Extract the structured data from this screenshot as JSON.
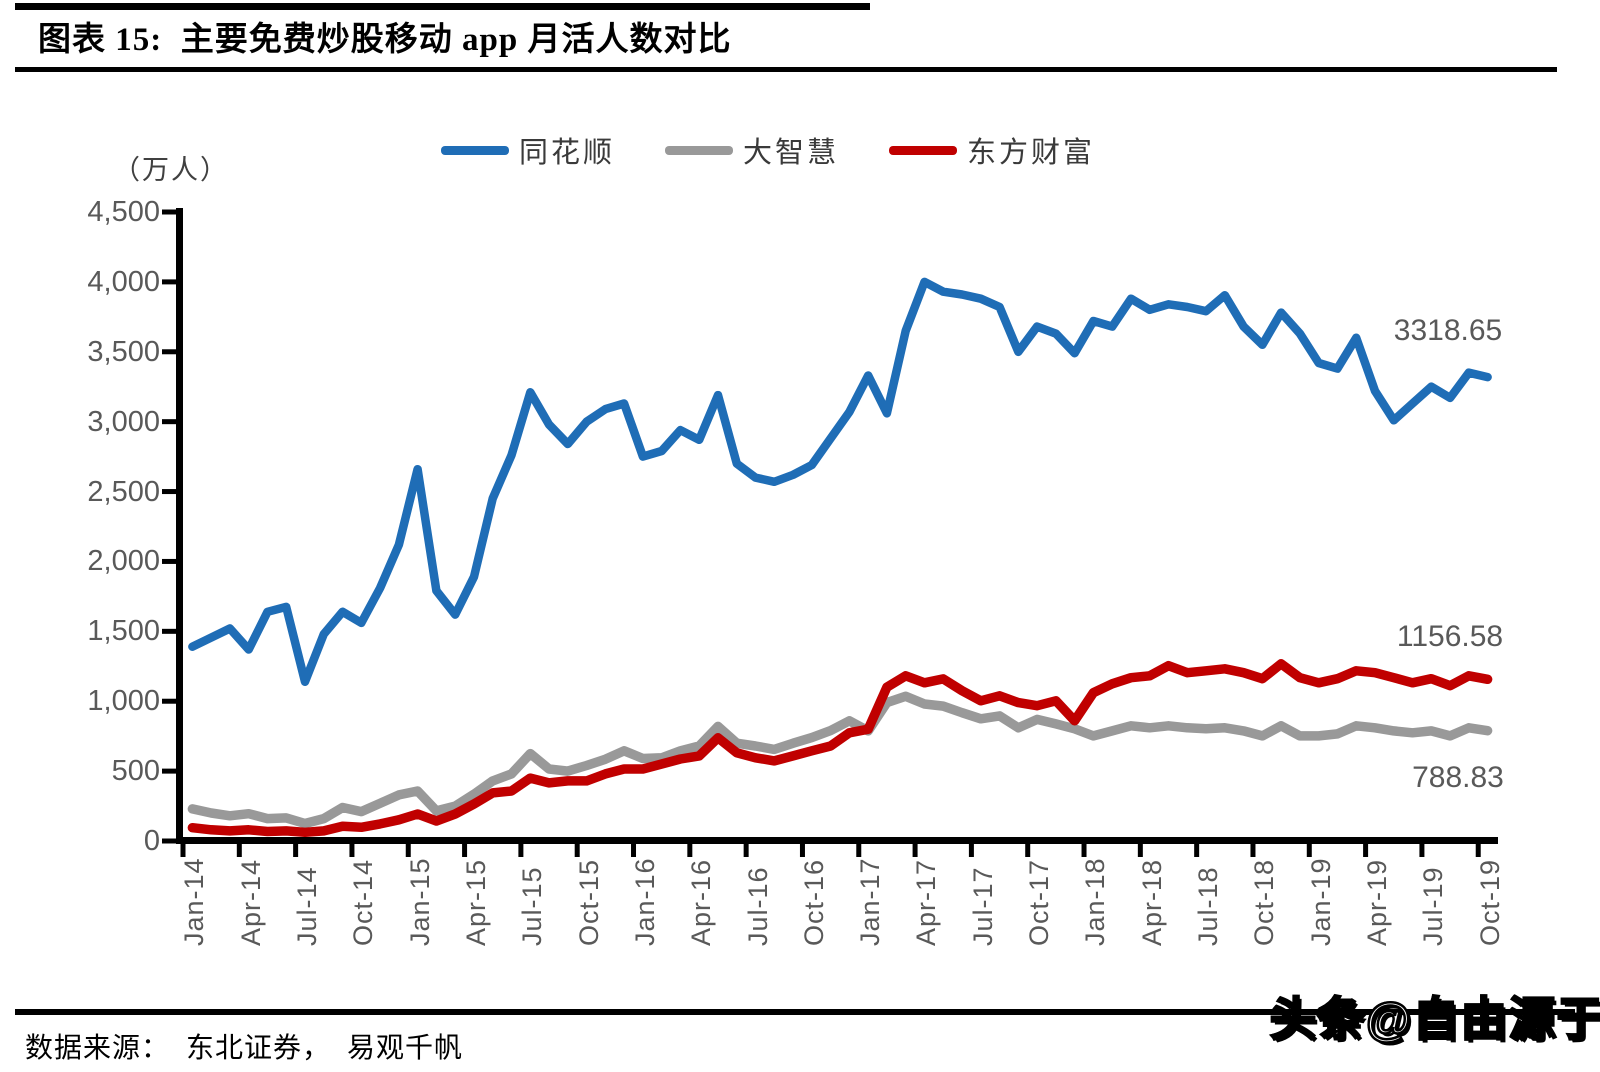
{
  "title": "图表 15:  主要免费炒股移动 app 月活人数对比",
  "y_unit": "（万人）",
  "source": "数据来源：  东北证券，  易观千帆",
  "watermark": "头条@自由源于",
  "colors": {
    "tonghuashun": "#1f6db6",
    "dazhihui": "#999999",
    "dongfangcaifu": "#c00000",
    "axis": "#000000",
    "tick_text": "#595959"
  },
  "legend": [
    {
      "id": "tonghuashun",
      "label": "同花顺",
      "color": "#1f6db6"
    },
    {
      "id": "dazhihui",
      "label": "大智慧",
      "color": "#999999"
    },
    {
      "id": "dongfangcaifu",
      "label": "东方财富",
      "color": "#c00000"
    }
  ],
  "chart_data": {
    "type": "line",
    "title": "主要免费炒股移动 app 月活人数对比",
    "ylabel": "（万人）",
    "ylim": [
      0,
      4500
    ],
    "ytick_step": 500,
    "grid": false,
    "legend_position": "top",
    "x_unit": "month",
    "x_range": [
      "Jan-14",
      "Oct-19"
    ],
    "x_tick_labels": [
      "Jan-14",
      "Apr-14",
      "Jul-14",
      "Oct-14",
      "Jan-15",
      "Apr-15",
      "Jul-15",
      "Oct-15",
      "Jan-16",
      "Apr-16",
      "Jul-16",
      "Oct-16",
      "Jan-17",
      "Apr-17",
      "Jul-17",
      "Oct-17",
      "Jan-18",
      "Apr-18",
      "Jul-18",
      "Oct-18",
      "Jan-19",
      "Apr-19",
      "Jul-19",
      "Oct-19"
    ],
    "y_ticks": [
      {
        "label": "0",
        "value": 0
      },
      {
        "label": "500",
        "value": 500
      },
      {
        "label": "1,000",
        "value": 1000
      },
      {
        "label": "1,500",
        "value": 1500
      },
      {
        "label": "2,000",
        "value": 2000
      },
      {
        "label": "2,500",
        "value": 2500
      },
      {
        "label": "3,000",
        "value": 3000
      },
      {
        "label": "3,500",
        "value": 3500
      },
      {
        "label": "4,000",
        "value": 4000
      },
      {
        "label": "4,500",
        "value": 4500
      }
    ],
    "series": [
      {
        "id": "tonghuashun",
        "name": "同花顺",
        "color": "#1f6db6",
        "end_label": "3318.65",
        "values": [
          1390,
          1455,
          1520,
          1370,
          1640,
          1675,
          1140,
          1480,
          1640,
          1560,
          1810,
          2120,
          2660,
          1790,
          1620,
          1890,
          2450,
          2760,
          3210,
          2980,
          2840,
          3000,
          3090,
          3130,
          2750,
          2790,
          2940,
          2870,
          3190,
          2700,
          2600,
          2570,
          2620,
          2690,
          2880,
          3070,
          3330,
          3060,
          3650,
          4000,
          3930,
          3910,
          3880,
          3820,
          3500,
          3680,
          3630,
          3490,
          3720,
          3680,
          3880,
          3800,
          3840,
          3820,
          3790,
          3905,
          3680,
          3550,
          3780,
          3630,
          3420,
          3380,
          3600,
          3220,
          3010,
          3130,
          3250,
          3170,
          3350,
          3318.65
        ]
      },
      {
        "id": "dazhihui",
        "name": "大智慧",
        "color": "#999999",
        "end_label": "788.83",
        "values": [
          230,
          200,
          180,
          195,
          160,
          165,
          125,
          160,
          240,
          210,
          270,
          330,
          358,
          215,
          250,
          335,
          430,
          480,
          625,
          515,
          500,
          540,
          585,
          645,
          590,
          595,
          645,
          680,
          820,
          700,
          680,
          655,
          700,
          740,
          790,
          860,
          788,
          990,
          1035,
          980,
          965,
          918,
          874,
          895,
          810,
          870,
          838,
          803,
          752,
          788,
          824,
          810,
          824,
          810,
          803,
          810,
          788,
          752,
          824,
          752,
          752,
          766,
          824,
          810,
          788,
          774,
          788,
          752,
          810,
          788.83
        ]
      },
      {
        "id": "dongfangcaifu",
        "name": "东方财富",
        "color": "#c00000",
        "end_label": "1156.58",
        "values": [
          95,
          80,
          72,
          80,
          68,
          72,
          62,
          72,
          105,
          98,
          122,
          152,
          193,
          143,
          193,
          265,
          344,
          358,
          450,
          416,
          430,
          430,
          480,
          515,
          515,
          551,
          587,
          609,
          738,
          631,
          595,
          573,
          609,
          645,
          680,
          774,
          800,
          1100,
          1182,
          1132,
          1160,
          1075,
          1003,
          1039,
          990,
          968,
          1003,
          860,
          1061,
          1125,
          1168,
          1182,
          1254,
          1204,
          1218,
          1232,
          1204,
          1161,
          1268,
          1168,
          1132,
          1161,
          1218,
          1204,
          1168,
          1132,
          1161,
          1111,
          1182,
          1156.58
        ]
      }
    ]
  }
}
